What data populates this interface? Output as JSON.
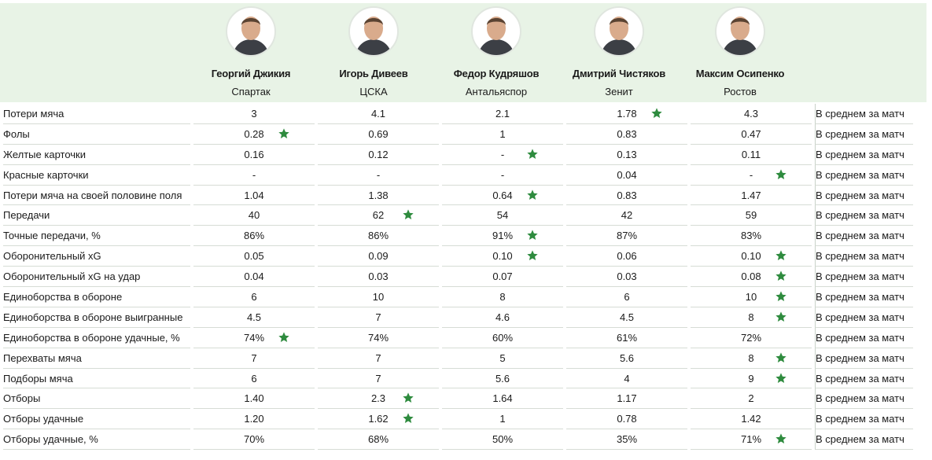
{
  "colors": {
    "header_bg": "#e8f3e6",
    "star": "#2e8b3e",
    "divider": "#d6dcd5"
  },
  "players": [
    {
      "name": "Георгий Джикия",
      "club": "Спартак",
      "icon": "player-photo"
    },
    {
      "name": "Игорь Дивеев",
      "club": "ЦСКА",
      "icon": "player-photo"
    },
    {
      "name": "Федор Кудряшов",
      "club": "Антальяспор",
      "icon": "player-photo"
    },
    {
      "name": "Дмитрий Чистяков",
      "club": "Зенит",
      "icon": "player-photo"
    },
    {
      "name": "Максим Осипенко",
      "club": "Ростов",
      "icon": "player-photo"
    }
  ],
  "chart_data": {
    "type": "table",
    "columns": [
      "Георгий Джикия",
      "Игорь Дивеев",
      "Федор Кудряшов",
      "Дмитрий Чистяков",
      "Максим Осипенко"
    ],
    "rows": [
      {
        "label": "Потери мяча",
        "values": [
          "3",
          "4.1",
          "2.1",
          "1.78",
          "4.3"
        ],
        "star": 3,
        "note": "В среднем за матч"
      },
      {
        "label": "Фолы",
        "values": [
          "0.28",
          "0.69",
          "1",
          "0.83",
          "0.47"
        ],
        "star": 0,
        "note": "В среднем за матч"
      },
      {
        "label": "Желтые карточки",
        "values": [
          "0.16",
          "0.12",
          "-",
          "0.13",
          "0.11"
        ],
        "star": 2,
        "note": "В среднем за матч"
      },
      {
        "label": "Красные карточки",
        "values": [
          "-",
          "-",
          "-",
          "0.04",
          "-"
        ],
        "star": 4,
        "note": "В среднем за матч"
      },
      {
        "label": "Потери мяча на своей половине поля",
        "values": [
          "1.04",
          "1.38",
          "0.64",
          "0.83",
          "1.47"
        ],
        "star": 2,
        "note": "В среднем за матч"
      },
      {
        "label": "Передачи",
        "values": [
          "40",
          "62",
          "54",
          "42",
          "59"
        ],
        "star": 1,
        "note": "В среднем за матч"
      },
      {
        "label": "Точные передачи, %",
        "values": [
          "86%",
          "86%",
          "91%",
          "87%",
          "83%"
        ],
        "star": 2,
        "note": "В среднем за матч"
      },
      {
        "label": "Оборонительный xG",
        "values": [
          "0.05",
          "0.09",
          "0.10",
          "0.06",
          "0.10"
        ],
        "stars": [
          2,
          4
        ],
        "note": "В среднем за матч"
      },
      {
        "label": "Оборонительный xG на удар",
        "values": [
          "0.04",
          "0.03",
          "0.07",
          "0.03",
          "0.08"
        ],
        "star": 4,
        "note": "В среднем за матч"
      },
      {
        "label": "Единоборства в обороне",
        "values": [
          "6",
          "10",
          "8",
          "6",
          "10"
        ],
        "star": 4,
        "note": "В среднем за матч"
      },
      {
        "label": "Единоборства в обороне выигранные",
        "values": [
          "4.5",
          "7",
          "4.6",
          "4.5",
          "8"
        ],
        "star": 4,
        "note": "В среднем за матч"
      },
      {
        "label": "Единоборства в обороне удачные, %",
        "values": [
          "74%",
          "74%",
          "60%",
          "61%",
          "72%"
        ],
        "star": 0,
        "note": "В среднем за матч"
      },
      {
        "label": "Перехваты мяча",
        "values": [
          "7",
          "7",
          "5",
          "5.6",
          "8"
        ],
        "star": 4,
        "note": "В среднем за матч"
      },
      {
        "label": "Подборы мяча",
        "values": [
          "6",
          "7",
          "5.6",
          "4",
          "9"
        ],
        "star": 4,
        "note": "В среднем за матч"
      },
      {
        "label": "Отборы",
        "values": [
          "1.40",
          "2.3",
          "1.64",
          "1.17",
          "2"
        ],
        "star": 1,
        "note": "В среднем за матч"
      },
      {
        "label": "Отборы удачные",
        "values": [
          "1.20",
          "1.62",
          "1",
          "0.78",
          "1.42"
        ],
        "star": 1,
        "note": "В среднем за матч"
      },
      {
        "label": "Отборы удачные, %",
        "values": [
          "70%",
          "68%",
          "50%",
          "35%",
          "71%"
        ],
        "star": 4,
        "note": "В среднем за матч"
      }
    ]
  }
}
